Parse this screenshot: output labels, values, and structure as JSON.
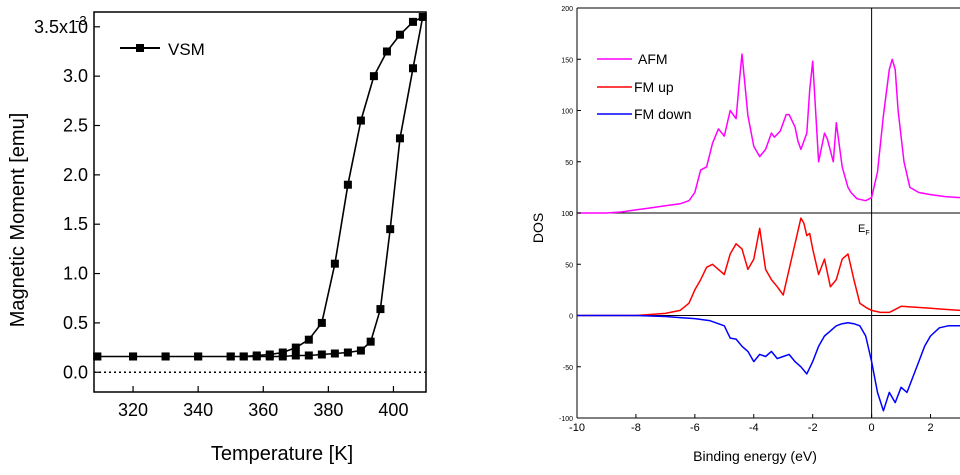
{
  "chart_data": [
    {
      "type": "line",
      "xlabel": "Temperature [K]",
      "ylabel": "Magnetic Moment [emu]",
      "xlim": [
        308,
        410
      ],
      "ylim": [
        -0.0002,
        0.00365
      ],
      "xticks": [
        "320",
        "340",
        "360",
        "380",
        "400"
      ],
      "yticks": [
        "0.0",
        "0.5",
        "1.0",
        "1.5",
        "2.0",
        "2.5",
        "3.0",
        "3.5x10"
      ],
      "ytick_exponent": "-3",
      "zero_line": "dotted",
      "legend": {
        "entries": [
          "VSM"
        ],
        "placement": "top-left"
      },
      "series": [
        {
          "name": "VSM",
          "color": "#000000",
          "marker": "square",
          "x": [
            309,
            320,
            330,
            340,
            350,
            354,
            358,
            362,
            366,
            370,
            374,
            378,
            382,
            386,
            390,
            394,
            398,
            402,
            406,
            409,
            406,
            402,
            399,
            396,
            393,
            390,
            386,
            382,
            378,
            374,
            370,
            366,
            362,
            358,
            354,
            350,
            340,
            330,
            320,
            309
          ],
          "y": [
            0.00016,
            0.00016,
            0.00016,
            0.00016,
            0.00016,
            0.00016,
            0.00017,
            0.00018,
            0.0002,
            0.00025,
            0.00033,
            0.0005,
            0.0011,
            0.0019,
            0.00255,
            0.003,
            0.00325,
            0.00342,
            0.00355,
            0.0036,
            0.00308,
            0.00237,
            0.00145,
            0.00064,
            0.00031,
            0.00022,
            0.0002,
            0.00019,
            0.00018,
            0.00017,
            0.00017,
            0.00016,
            0.00016,
            0.00016,
            0.00016,
            0.00016,
            0.00016,
            0.00016,
            0.00016,
            0.00016
          ]
        }
      ]
    },
    {
      "type": "line",
      "xlabel": "Binding energy (eV)",
      "ylabel": "DOS",
      "xlim": [
        -10,
        3
      ],
      "xticks": [
        "-10",
        "-8",
        "-6",
        "-4",
        "-2",
        "0",
        "2"
      ],
      "annotation": {
        "text": "E",
        "subscript": "F"
      },
      "legend": {
        "entries": [
          "AFM",
          "FM up",
          "FM down"
        ],
        "placement": "top-left"
      },
      "panels": [
        {
          "ylim": [
            0,
            200
          ],
          "yticks": [
            "0",
            "50",
            "100",
            "150",
            "200"
          ],
          "series": [
            {
              "name": "AFM",
              "color": "#ff00ff",
              "x": [
                -10,
                -9,
                -8.5,
                -8,
                -7.5,
                -7,
                -6.5,
                -6.2,
                -6,
                -5.8,
                -5.6,
                -5.4,
                -5.2,
                -5.0,
                -4.8,
                -4.6,
                -4.5,
                -4.4,
                -4.2,
                -4.0,
                -3.8,
                -3.6,
                -3.4,
                -3.3,
                -3.1,
                -2.9,
                -2.8,
                -2.6,
                -2.5,
                -2.4,
                -2.2,
                -2.1,
                -2.0,
                -1.9,
                -1.8,
                -1.6,
                -1.5,
                -1.3,
                -1.2,
                -1.0,
                -0.8,
                -0.7,
                -0.5,
                -0.2,
                0.0,
                0.2,
                0.4,
                0.6,
                0.7,
                0.8,
                0.9,
                1.1,
                1.3,
                1.6,
                2.0,
                2.5,
                3.0
              ],
              "y": [
                0,
                0,
                1,
                3,
                5,
                7,
                9,
                12,
                20,
                42,
                45,
                68,
                82,
                75,
                100,
                92,
                125,
                155,
                95,
                65,
                55,
                62,
                78,
                74,
                80,
                96,
                96,
                84,
                70,
                62,
                78,
                120,
                148,
                100,
                50,
                78,
                72,
                50,
                88,
                45,
                25,
                20,
                14,
                12,
                15,
                40,
                95,
                140,
                150,
                140,
                100,
                50,
                25,
                20,
                18,
                16,
                15
              ]
            }
          ]
        },
        {
          "ylim": [
            -100,
            100
          ],
          "yticks": [
            "-100",
            "-50",
            "0",
            "50",
            "100"
          ],
          "series": [
            {
              "name": "FM up",
              "color": "#ff0000",
              "x": [
                -10,
                -8,
                -7,
                -6.5,
                -6.2,
                -6.0,
                -5.8,
                -5.6,
                -5.4,
                -5.2,
                -5.0,
                -4.8,
                -4.6,
                -4.4,
                -4.2,
                -4.0,
                -3.8,
                -3.6,
                -3.4,
                -3.2,
                -3.0,
                -2.8,
                -2.6,
                -2.4,
                -2.3,
                -2.2,
                -2.1,
                -2.0,
                -1.8,
                -1.6,
                -1.4,
                -1.2,
                -1.0,
                -0.8,
                -0.6,
                -0.4,
                -0.2,
                0.0,
                0.3,
                0.6,
                0.8,
                1.0,
                1.5,
                2.0,
                2.5,
                3.0
              ],
              "y": [
                0,
                0,
                2,
                5,
                12,
                25,
                35,
                47,
                50,
                45,
                40,
                60,
                70,
                65,
                45,
                55,
                85,
                45,
                35,
                28,
                20,
                45,
                70,
                95,
                90,
                78,
                80,
                65,
                40,
                55,
                28,
                35,
                55,
                60,
                35,
                12,
                8,
                5,
                3,
                3,
                6,
                9,
                8,
                7,
                6,
                5
              ]
            },
            {
              "name": "FM down",
              "color": "#0000ff",
              "x": [
                -10,
                -8,
                -7,
                -6.5,
                -6,
                -5.5,
                -5.0,
                -4.8,
                -4.6,
                -4.4,
                -4.2,
                -4.0,
                -3.8,
                -3.6,
                -3.4,
                -3.2,
                -3.0,
                -2.8,
                -2.6,
                -2.4,
                -2.2,
                -2.0,
                -1.8,
                -1.6,
                -1.4,
                -1.2,
                -1.0,
                -0.8,
                -0.6,
                -0.4,
                -0.2,
                0.0,
                0.2,
                0.4,
                0.6,
                0.8,
                1.0,
                1.2,
                1.4,
                1.6,
                1.8,
                2.0,
                2.3,
                2.6,
                3.0
              ],
              "y": [
                0,
                0,
                -1,
                -2,
                -3,
                -5,
                -10,
                -22,
                -23,
                -30,
                -35,
                -45,
                -38,
                -40,
                -35,
                -42,
                -40,
                -38,
                -45,
                -50,
                -57,
                -45,
                -30,
                -20,
                -15,
                -10,
                -8,
                -7,
                -8,
                -10,
                -20,
                -45,
                -75,
                -93,
                -75,
                -85,
                -70,
                -75,
                -60,
                -45,
                -30,
                -20,
                -12,
                -10,
                -10
              ]
            }
          ]
        }
      ]
    }
  ]
}
